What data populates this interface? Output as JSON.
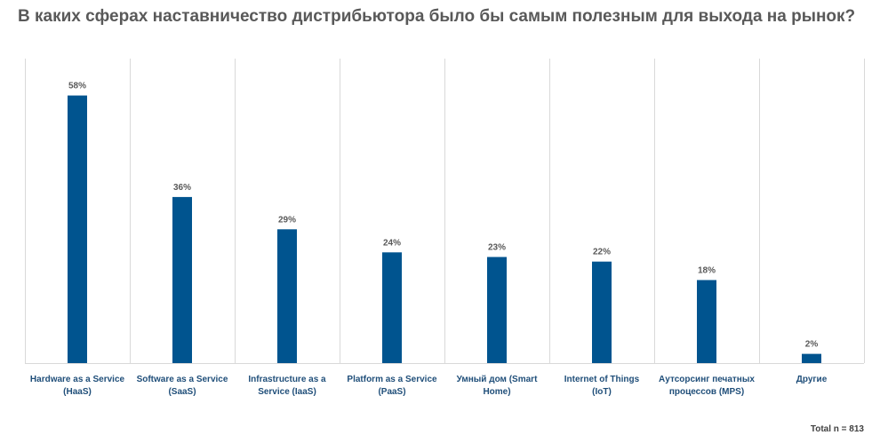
{
  "chart_data": {
    "type": "bar",
    "title": "В каких сферах наставничество дистрибьютора было бы самым полезным для выхода на рынок?",
    "categories": [
      [
        "Hardware as a Service",
        "(HaaS)"
      ],
      [
        "Software as a Service",
        "(SaaS)"
      ],
      [
        "Infrastructure as a",
        "Service (IaaS)"
      ],
      [
        "Platform as a Service",
        "(PaaS)"
      ],
      [
        "Умный дом (Smart",
        "Home)"
      ],
      [
        "Internet of Things",
        "(IoT)"
      ],
      [
        "Аутсорсинг печатных",
        "процессов (MPS)"
      ],
      [
        "Другие"
      ]
    ],
    "values": [
      58,
      36,
      29,
      24,
      23,
      22,
      18,
      2
    ],
    "value_labels": [
      "58%",
      "36%",
      "29%",
      "24%",
      "23%",
      "22%",
      "18%",
      "2%"
    ],
    "ylim": [
      0,
      66
    ],
    "xlabel": "",
    "ylabel": "",
    "gridlines": "vertical separators",
    "bar_color": "#00548f",
    "footnote": "Total n = 813"
  }
}
